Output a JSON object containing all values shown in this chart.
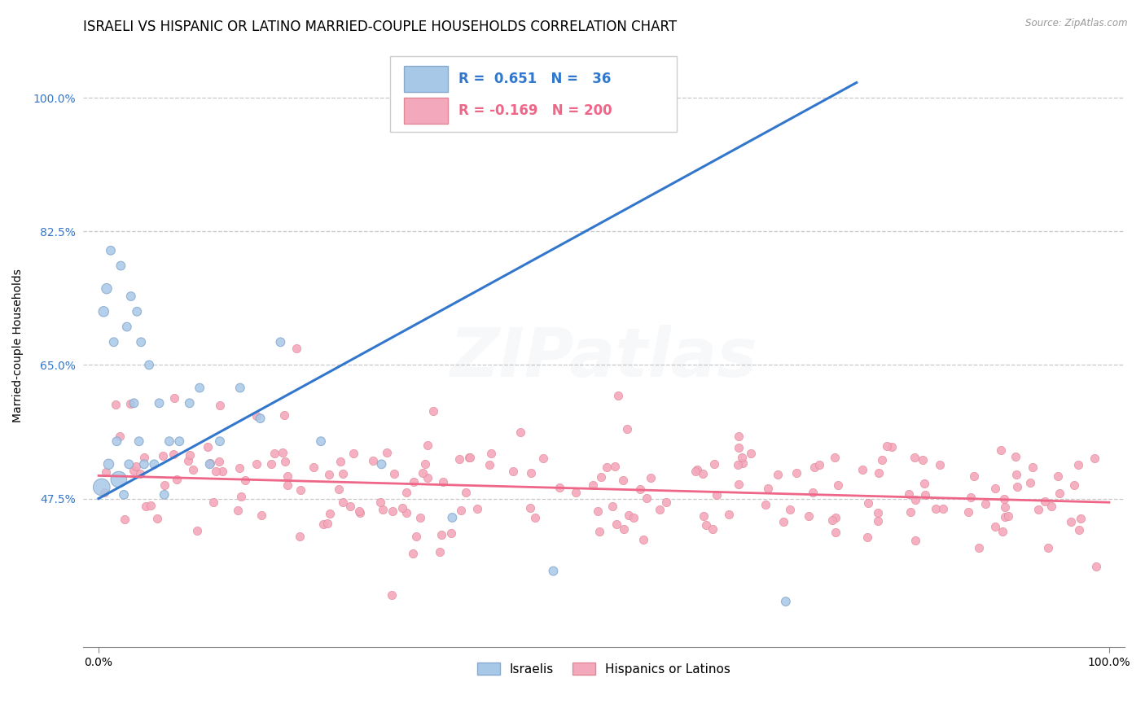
{
  "title": "ISRAELI VS HISPANIC OR LATINO MARRIED-COUPLE HOUSEHOLDS CORRELATION CHART",
  "source_text": "Source: ZipAtlas.com",
  "ylabel": "Married-couple Households",
  "xlim": [
    -1.5,
    101.5
  ],
  "ylim": [
    28.0,
    107.0
  ],
  "yticks": [
    47.5,
    65.0,
    82.5,
    100.0
  ],
  "xticks": [
    0.0,
    100.0
  ],
  "xtick_labels": [
    "0.0%",
    "100.0%"
  ],
  "ytick_labels": [
    "47.5%",
    "65.0%",
    "82.5%",
    "100.0%"
  ],
  "watermark": "ZIPatlas",
  "legend_R1": "0.651",
  "legend_N1": "36",
  "legend_R2": "-0.169",
  "legend_N2": "200",
  "israelis_color": "#A8C8E8",
  "israelis_edge_color": "#88AACC",
  "hispanics_color": "#F4A8BC",
  "hispanics_edge_color": "#E08898",
  "trend_israeli_color": "#3377CC",
  "trend_hispanic_color": "#EE6688",
  "background_color": "#FFFFFF",
  "grid_color": "#BBBBBB",
  "title_fontsize": 12,
  "label_fontsize": 10,
  "tick_fontsize": 10,
  "watermark_fontsize": 60,
  "watermark_alpha": 0.1,
  "isr_trend_x0": 0.0,
  "isr_trend_y0": 47.5,
  "isr_trend_x1": 75.0,
  "isr_trend_y1": 102.0,
  "hisp_trend_x0": 0.0,
  "hisp_trend_y0": 50.5,
  "hisp_trend_x1": 100.0,
  "hisp_trend_y1": 47.0
}
